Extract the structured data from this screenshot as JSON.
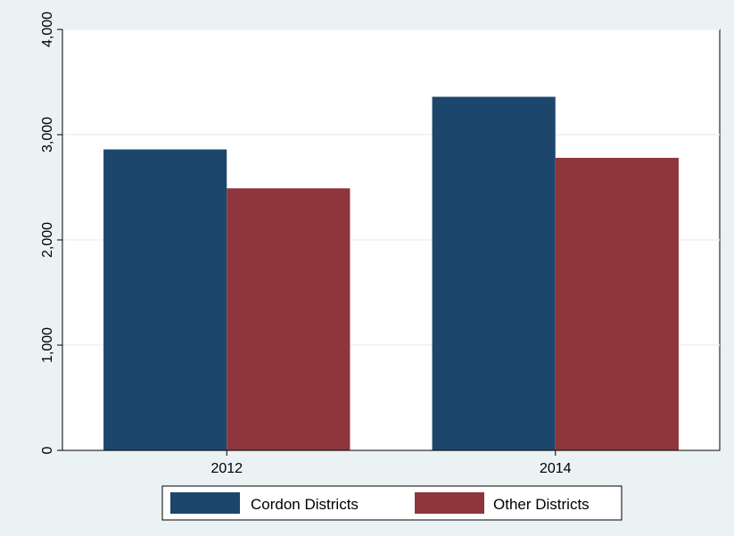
{
  "chart_data": {
    "type": "bar",
    "title": "",
    "xlabel": "",
    "ylabel": "",
    "categories": [
      "2012",
      "2014"
    ],
    "series": [
      {
        "name": "Cordon Districts",
        "values": [
          2860,
          3360
        ],
        "color": "#1d466d"
      },
      {
        "name": "Other Districts",
        "values": [
          2490,
          2780
        ],
        "color": "#8f353c"
      }
    ],
    "ylim": [
      0,
      4000
    ],
    "yticks": [
      0,
      1000,
      2000,
      3000,
      4000
    ],
    "ytick_labels": [
      "0",
      "1,000",
      "2,000",
      "3,000",
      "4,000"
    ],
    "grid": true,
    "legend_position": "bottom",
    "background_outer": "#eaf2f3",
    "background_plot": "#ffffff",
    "grid_color": "#eaf2f3"
  }
}
